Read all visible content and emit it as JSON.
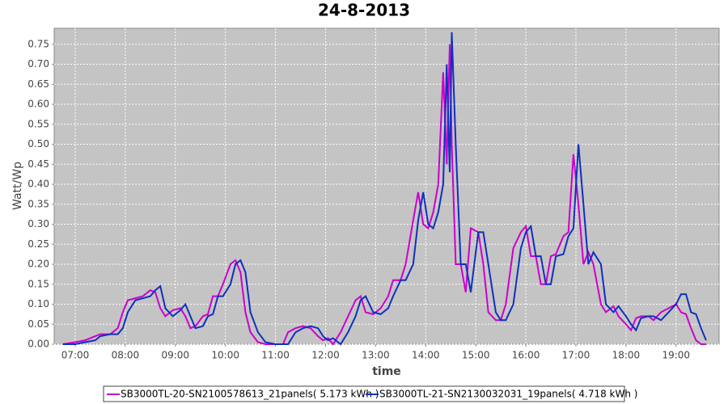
{
  "chart_data": {
    "type": "line",
    "title": "24-8-2013",
    "x_label": "time",
    "y_label": "Watt/Wp",
    "x": [
      6.75,
      7.0,
      7.2,
      7.4,
      7.5,
      7.7,
      7.85,
      7.95,
      8.05,
      8.2,
      8.35,
      8.5,
      8.6,
      8.7,
      8.8,
      8.95,
      9.1,
      9.2,
      9.3,
      9.4,
      9.55,
      9.65,
      9.75,
      9.85,
      9.95,
      10.1,
      10.2,
      10.3,
      10.4,
      10.5,
      10.65,
      10.8,
      11.0,
      11.15,
      11.25,
      11.4,
      11.55,
      11.7,
      11.85,
      11.95,
      12.05,
      12.15,
      12.3,
      12.45,
      12.6,
      12.7,
      12.8,
      12.95,
      13.1,
      13.25,
      13.35,
      13.5,
      13.6,
      13.75,
      13.85,
      13.95,
      14.05,
      14.15,
      14.25,
      14.35,
      14.42,
      14.48,
      14.52,
      14.6,
      14.7,
      14.8,
      14.9,
      15.05,
      15.15,
      15.25,
      15.4,
      15.5,
      15.6,
      15.75,
      15.9,
      16.0,
      16.1,
      16.2,
      16.3,
      16.4,
      16.5,
      16.6,
      16.75,
      16.85,
      16.95,
      17.05,
      17.15,
      17.25,
      17.35,
      17.5,
      17.6,
      17.75,
      17.85,
      18.0,
      18.1,
      18.2,
      18.3,
      18.45,
      18.55,
      18.7,
      18.85,
      19.0,
      19.1,
      19.2,
      19.3,
      19.4,
      19.5,
      19.6
    ],
    "series": [
      {
        "name": "SB3000TL-20-SN2100578613_21panels( 5.173 kWh )",
        "color": "#cc00cc",
        "values": [
          0,
          0.005,
          0.01,
          0.02,
          0.025,
          0.025,
          0.04,
          0.08,
          0.11,
          0.115,
          0.12,
          0.135,
          0.13,
          0.09,
          0.07,
          0.085,
          0.09,
          0.07,
          0.04,
          0.045,
          0.07,
          0.075,
          0.12,
          0.12,
          0.15,
          0.2,
          0.21,
          0.18,
          0.08,
          0.03,
          0.005,
          0,
          0,
          0,
          0.03,
          0.04,
          0.045,
          0.04,
          0.02,
          0.01,
          0.015,
          0,
          0.03,
          0.07,
          0.11,
          0.12,
          0.08,
          0.075,
          0.09,
          0.12,
          0.16,
          0.16,
          0.2,
          0.31,
          0.38,
          0.3,
          0.29,
          0.33,
          0.4,
          0.68,
          0.45,
          0.75,
          0.5,
          0.2,
          0.2,
          0.13,
          0.29,
          0.28,
          0.2,
          0.08,
          0.06,
          0.06,
          0.1,
          0.24,
          0.28,
          0.295,
          0.22,
          0.22,
          0.15,
          0.15,
          0.22,
          0.225,
          0.27,
          0.28,
          0.475,
          0.35,
          0.2,
          0.23,
          0.2,
          0.1,
          0.08,
          0.095,
          0.07,
          0.05,
          0.035,
          0.065,
          0.07,
          0.07,
          0.06,
          0.08,
          0.09,
          0.1,
          0.08,
          0.075,
          0.04,
          0.01,
          0,
          0
        ]
      },
      {
        "name": "SB3000TL-21-SN2130032031_19panels( 4.718 kWh )",
        "color": "#1030c0",
        "values": [
          0,
          0,
          0.005,
          0.01,
          0.02,
          0.025,
          0.025,
          0.04,
          0.08,
          0.11,
          0.115,
          0.12,
          0.135,
          0.145,
          0.09,
          0.07,
          0.085,
          0.1,
          0.07,
          0.04,
          0.045,
          0.07,
          0.075,
          0.12,
          0.12,
          0.15,
          0.2,
          0.21,
          0.18,
          0.08,
          0.03,
          0.005,
          0,
          0,
          0,
          0.03,
          0.04,
          0.045,
          0.04,
          0.02,
          0.01,
          0.015,
          0,
          0.03,
          0.07,
          0.11,
          0.12,
          0.08,
          0.075,
          0.09,
          0.12,
          0.16,
          0.16,
          0.2,
          0.31,
          0.38,
          0.3,
          0.29,
          0.33,
          0.4,
          0.7,
          0.43,
          0.78,
          0.5,
          0.2,
          0.2,
          0.13,
          0.28,
          0.28,
          0.2,
          0.08,
          0.06,
          0.06,
          0.1,
          0.24,
          0.28,
          0.295,
          0.22,
          0.22,
          0.15,
          0.15,
          0.22,
          0.225,
          0.27,
          0.29,
          0.5,
          0.35,
          0.2,
          0.23,
          0.2,
          0.1,
          0.08,
          0.095,
          0.07,
          0.05,
          0.035,
          0.065,
          0.07,
          0.07,
          0.06,
          0.08,
          0.1,
          0.125,
          0.125,
          0.08,
          0.075,
          0.04,
          0.01
        ]
      }
    ],
    "xlim": [
      6.58,
      19.86
    ],
    "ylim": [
      0,
      0.79
    ],
    "xticks": [
      {
        "value": 7,
        "label": "07:00"
      },
      {
        "value": 8,
        "label": "08:00"
      },
      {
        "value": 9,
        "label": "09:00"
      },
      {
        "value": 10,
        "label": "10:00"
      },
      {
        "value": 11,
        "label": "11:00"
      },
      {
        "value": 12,
        "label": "12:00"
      },
      {
        "value": 13,
        "label": "13:00"
      },
      {
        "value": 14,
        "label": "14:00"
      },
      {
        "value": 15,
        "label": "15:00"
      },
      {
        "value": 16,
        "label": "16:00"
      },
      {
        "value": 17,
        "label": "17:00"
      },
      {
        "value": 18,
        "label": "18:00"
      },
      {
        "value": 19,
        "label": "19:00"
      }
    ],
    "yticks": [
      {
        "value": 0,
        "label": "0.00"
      },
      0.05,
      {
        "value": 0.1,
        "label": "0.10"
      },
      0.15,
      {
        "value": 0.2,
        "label": "0.20"
      },
      0.25,
      {
        "value": 0.3,
        "label": "0.30"
      },
      0.35,
      {
        "value": 0.4,
        "label": "0.40"
      },
      0.45,
      {
        "value": 0.5,
        "label": "0.50"
      },
      0.55,
      {
        "value": 0.6,
        "label": "0.60"
      },
      0.65,
      {
        "value": 0.7,
        "label": "0.70"
      },
      0.75
    ],
    "grid": true
  }
}
